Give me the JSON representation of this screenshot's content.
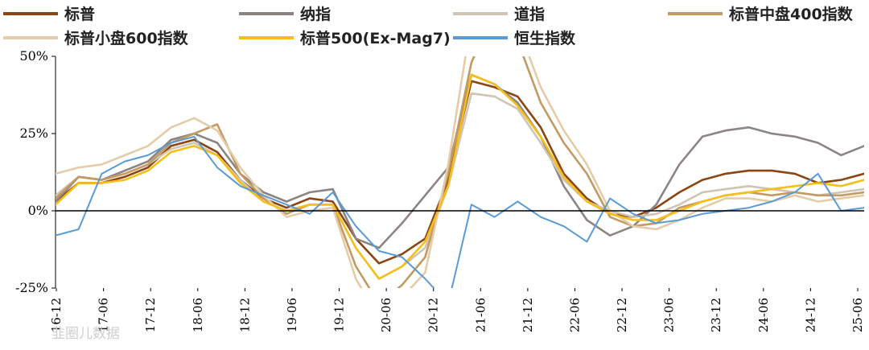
{
  "chart_data": {
    "type": "line",
    "title": "",
    "xlabel": "",
    "ylabel": "",
    "ylim": [
      -25,
      50
    ],
    "yticks": [
      50,
      25,
      0,
      -25
    ],
    "ytick_labels": [
      "50%",
      "25%",
      "0%",
      "-25%"
    ],
    "xtick_labels": [
      "16-12",
      "17-06",
      "17-12",
      "18-06",
      "18-12",
      "19-06",
      "19-12",
      "20-06",
      "20-12",
      "21-06",
      "21-12",
      "22-06",
      "22-12",
      "23-06",
      "23-12",
      "24-06",
      "24-12",
      "25-06"
    ],
    "legend_position": "top",
    "grid": false,
    "x": [
      "16-12",
      "17-03",
      "17-06",
      "17-09",
      "17-12",
      "18-03",
      "18-06",
      "18-09",
      "18-12",
      "19-03",
      "19-06",
      "19-09",
      "19-12",
      "20-03",
      "20-06",
      "20-09",
      "20-12",
      "21-03",
      "21-06",
      "21-09",
      "21-12",
      "22-03",
      "22-06",
      "22-09",
      "22-12",
      "23-03",
      "23-06",
      "23-09",
      "23-12",
      "24-03",
      "24-06",
      "24-09",
      "24-12",
      "25-03",
      "25-06",
      "25-09"
    ],
    "series": [
      {
        "name": "标普",
        "color": "#8B4513",
        "values": [
          3,
          9,
          9,
          11,
          14,
          21,
          23,
          19,
          10,
          4,
          1,
          4,
          3,
          -9,
          -17,
          -14,
          -9,
          10,
          42,
          40,
          37,
          27,
          12,
          4,
          -1,
          -2,
          1,
          6,
          10,
          12,
          13,
          13,
          12,
          9,
          10,
          12
        ]
      },
      {
        "name": "纳指",
        "color": "#8c8482",
        "values": [
          3,
          11,
          10,
          13,
          16,
          23,
          25,
          22,
          12,
          6,
          3,
          6,
          7,
          -9,
          -12,
          -4,
          5,
          14,
          44,
          41,
          35,
          24,
          8,
          -3,
          -8,
          -5,
          2,
          15,
          24,
          26,
          27,
          25,
          24,
          22,
          18,
          21
        ]
      },
      {
        "name": "道指",
        "color": "#d0c4b4",
        "values": [
          5,
          11,
          10,
          12,
          15,
          20,
          22,
          18,
          10,
          3,
          0,
          2,
          2,
          -12,
          -22,
          -18,
          -12,
          8,
          38,
          37,
          33,
          22,
          10,
          3,
          0,
          -2,
          -1,
          2,
          6,
          7,
          8,
          7,
          6,
          5,
          6,
          7
        ]
      },
      {
        "name": "标普中盘400指数",
        "color": "#c29a62",
        "values": [
          4,
          11,
          10,
          12,
          15,
          22,
          25,
          28,
          12,
          4,
          -1,
          2,
          2,
          -18,
          -30,
          -24,
          -15,
          12,
          48,
          65,
          55,
          35,
          22,
          12,
          -2,
          -5,
          -4,
          1,
          3,
          5,
          6,
          5,
          6,
          5,
          5,
          6
        ]
      },
      {
        "name": "标普小盘600指数",
        "color": "#e4cca8",
        "values": [
          12,
          14,
          15,
          18,
          21,
          27,
          30,
          26,
          14,
          5,
          -2,
          0,
          1,
          -22,
          -35,
          -28,
          -20,
          15,
          62,
          70,
          60,
          40,
          26,
          15,
          0,
          -5,
          -6,
          -3,
          1,
          4,
          4,
          3,
          5,
          3,
          4,
          5
        ]
      },
      {
        "name": "标普500(Ex-Mag7)",
        "color": "#f5bf1a",
        "values": [
          2,
          9,
          9,
          10,
          13,
          19,
          21,
          18,
          9,
          3,
          0,
          2,
          2,
          -12,
          -22,
          -18,
          -10,
          8,
          44,
          41,
          34,
          24,
          11,
          3,
          -1,
          -3,
          -3,
          0,
          3,
          5,
          6,
          7,
          8,
          9,
          8,
          10
        ]
      },
      {
        "name": "恒生指数",
        "color": "#5b9bd5",
        "values": [
          -8,
          -6,
          12,
          16,
          18,
          22,
          24,
          14,
          8,
          5,
          2,
          -1,
          6,
          -5,
          -13,
          -15,
          -22,
          -30,
          2,
          -2,
          3,
          -2,
          -5,
          -10,
          4,
          -1,
          -4,
          -3,
          -1,
          0,
          1,
          3,
          6,
          12,
          0,
          1
        ]
      }
    ]
  },
  "watermark": "韭圈儿数据"
}
